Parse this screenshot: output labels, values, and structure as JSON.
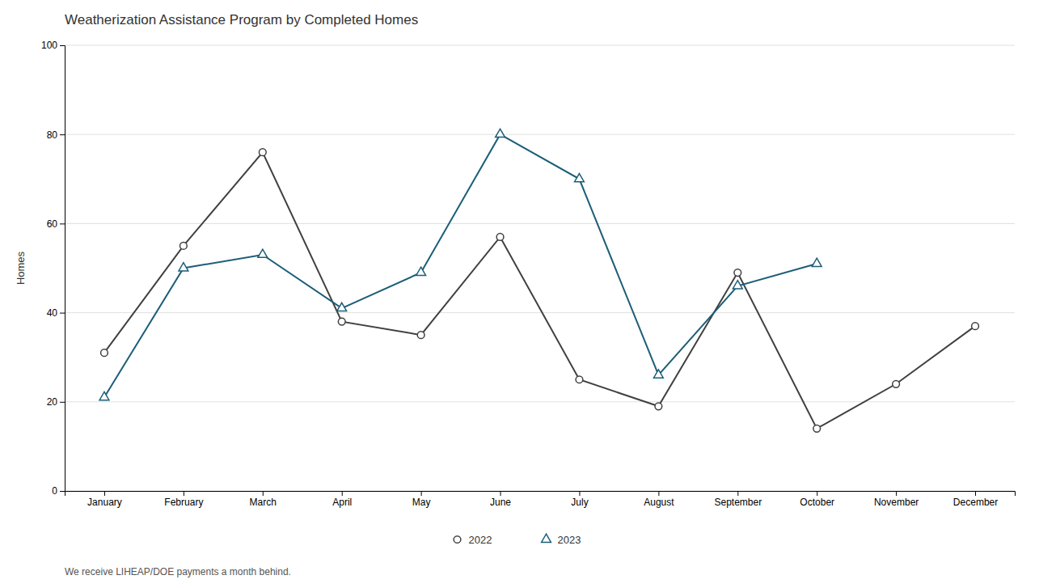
{
  "chart_data": {
    "type": "line",
    "title": "Weatherization Assistance Program by Completed Homes",
    "ylabel": "Homes",
    "footnote": "We receive LIHEAP/DOE payments a month behind.",
    "categories": [
      "January",
      "February",
      "March",
      "April",
      "May",
      "June",
      "July",
      "August",
      "September",
      "October",
      "November",
      "December"
    ],
    "series": [
      {
        "name": "2022",
        "color": "#404040",
        "marker": "circle",
        "line_style": "solid",
        "values": [
          31,
          55,
          76,
          38,
          35,
          57,
          25,
          19,
          49,
          14,
          24,
          37
        ]
      },
      {
        "name": "2023",
        "color": "#1B5E77",
        "marker": "triangle",
        "line_style": "solid",
        "values": [
          21,
          50,
          53,
          41,
          49,
          80,
          70,
          26,
          46,
          51,
          null,
          null
        ]
      }
    ],
    "ylim": [
      0,
      100
    ],
    "yticks": [
      0,
      20,
      40,
      60,
      80,
      100
    ],
    "grid": true,
    "legend": "bottom"
  }
}
